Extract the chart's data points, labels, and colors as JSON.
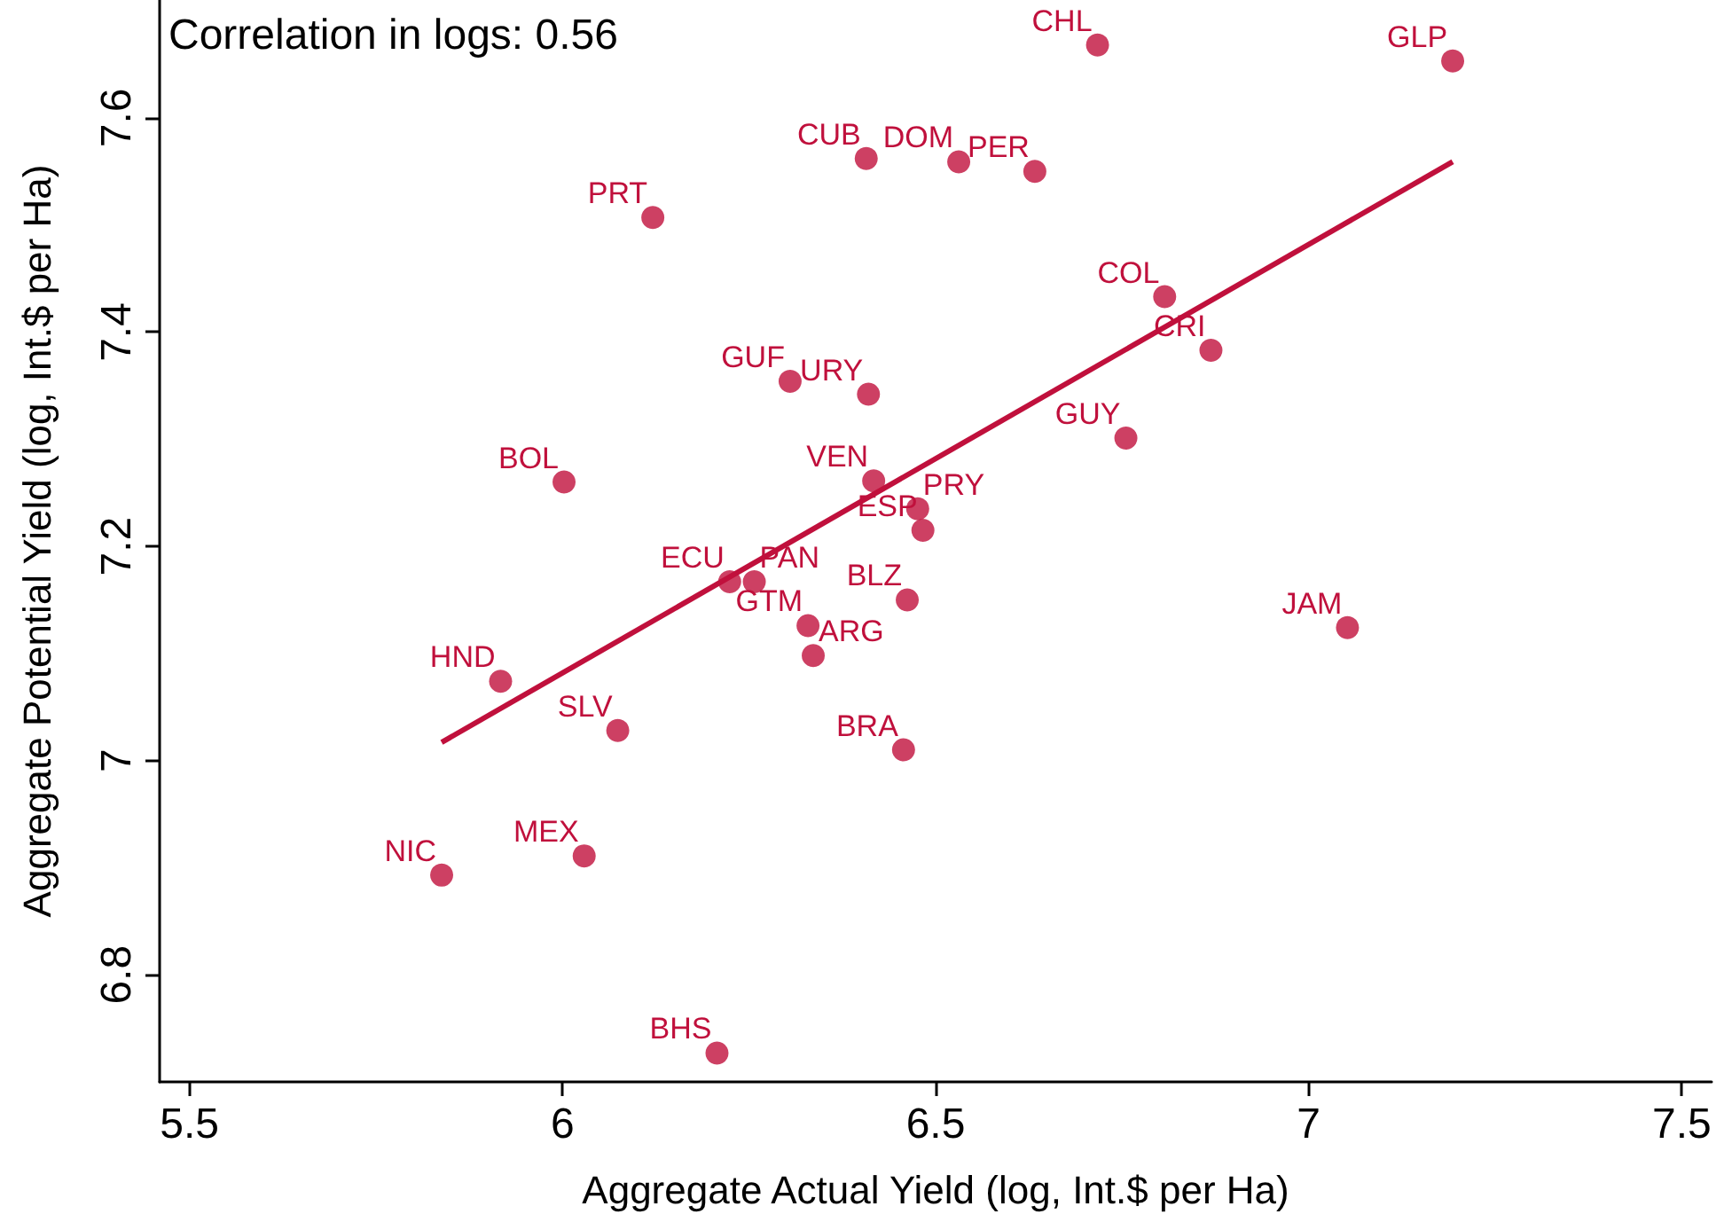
{
  "chart_data": {
    "type": "scatter",
    "xlabel": "Aggregate Actual Yield (log, Int.$ per Ha)",
    "ylabel": "Aggregate Potential Yield (log, Int.$ per Ha)",
    "xlim": [
      5.46,
      7.54
    ],
    "xticks": [
      5.5,
      6,
      6.5,
      7,
      7.5
    ],
    "ylim": [
      6.7,
      7.71
    ],
    "yticks": [
      6.8,
      7,
      7.2,
      7.4,
      7.6
    ],
    "grid": false,
    "series": [
      {
        "type": "scatter",
        "color": "#c0103c",
        "marker": "circle",
        "x": [
          6.717,
          7.193,
          6.407,
          6.531,
          6.633,
          6.121,
          6.807,
          6.869,
          6.305,
          6.41,
          6.755,
          6.002,
          6.417,
          6.476,
          6.483,
          6.224,
          6.257,
          6.329,
          6.462,
          6.336,
          7.052,
          5.917,
          6.074,
          6.457,
          5.838,
          6.029,
          6.207
        ],
        "values": [
          7.668,
          7.653,
          7.562,
          7.559,
          7.55,
          7.507,
          7.433,
          7.383,
          7.354,
          7.342,
          7.301,
          7.26,
          7.261,
          7.235,
          7.215,
          7.167,
          7.167,
          7.126,
          7.15,
          7.098,
          7.124,
          7.074,
          7.028,
          7.01,
          6.893,
          6.911,
          6.727
        ]
      },
      {
        "type": "line",
        "color": "#c0103c",
        "marker": "none",
        "line_style": "solid",
        "x": [
          5.838,
          7.193
        ],
        "values": [
          7.017,
          7.559
        ]
      }
    ],
    "annotations": [
      "Correlation in logs: 0.56",
      {
        "text": "CHL",
        "x": 6.717,
        "y": 7.668
      },
      {
        "text": "GLP",
        "x": 7.193,
        "y": 7.653
      },
      {
        "text": "CUB",
        "x": 6.407,
        "y": 7.562
      },
      {
        "text": "DOM",
        "x": 6.531,
        "y": 7.559
      },
      {
        "text": "PER",
        "x": 6.633,
        "y": 7.55
      },
      {
        "text": "PRT",
        "x": 6.121,
        "y": 7.507
      },
      {
        "text": "COL",
        "x": 6.807,
        "y": 7.433
      },
      {
        "text": "CRI",
        "x": 6.869,
        "y": 7.383
      },
      {
        "text": "GUF",
        "x": 6.305,
        "y": 7.354
      },
      {
        "text": "URY",
        "x": 6.41,
        "y": 7.342
      },
      {
        "text": "GUY",
        "x": 6.755,
        "y": 7.301
      },
      {
        "text": "BOL",
        "x": 6.002,
        "y": 7.26
      },
      {
        "text": "VEN",
        "x": 6.417,
        "y": 7.261
      },
      {
        "text": "PRY",
        "x": 6.476,
        "y": 7.235
      },
      {
        "text": "ESP",
        "x": 6.483,
        "y": 7.215
      },
      {
        "text": "ECU",
        "x": 6.224,
        "y": 7.167
      },
      {
        "text": "PAN",
        "x": 6.257,
        "y": 7.167
      },
      {
        "text": "GTM",
        "x": 6.329,
        "y": 7.126
      },
      {
        "text": "BLZ",
        "x": 6.462,
        "y": 7.15
      },
      {
        "text": "ARG",
        "x": 6.336,
        "y": 7.098
      },
      {
        "text": "JAM",
        "x": 7.052,
        "y": 7.124
      },
      {
        "text": "HND",
        "x": 5.917,
        "y": 7.074
      },
      {
        "text": "SLV",
        "x": 6.074,
        "y": 7.028
      },
      {
        "text": "BRA",
        "x": 6.457,
        "y": 7.01
      },
      {
        "text": "NIC",
        "x": 5.838,
        "y": 6.893
      },
      {
        "text": "MEX",
        "x": 6.029,
        "y": 6.911
      },
      {
        "text": "BHS",
        "x": 6.207,
        "y": 6.727
      }
    ]
  }
}
